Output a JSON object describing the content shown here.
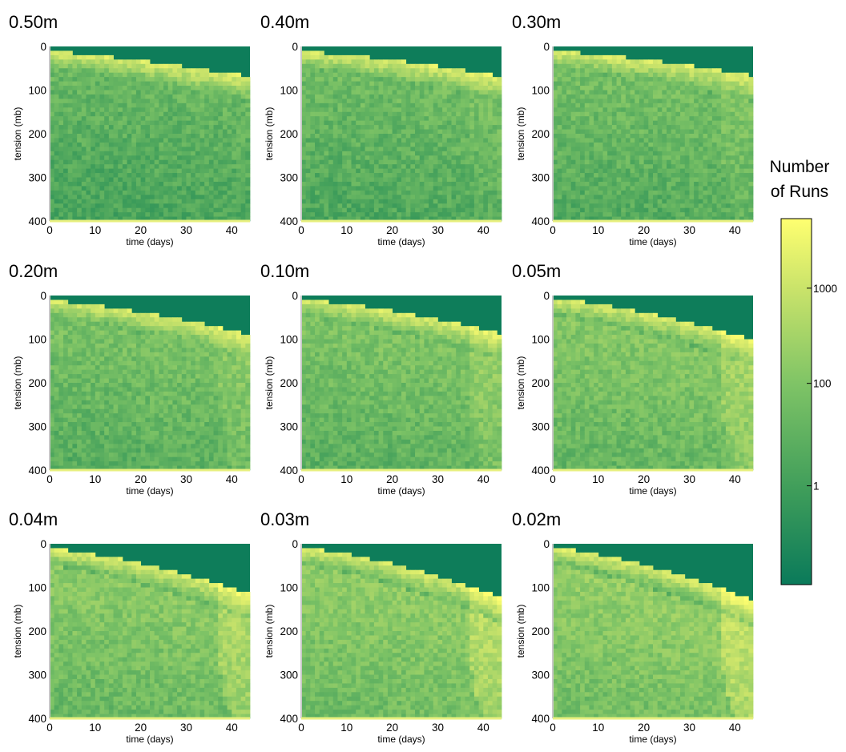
{
  "chart_data": {
    "type": "heatmap",
    "xlabel": "time (days)",
    "ylabel": "tension (mb)",
    "xlim": [
      0,
      44
    ],
    "ylim": [
      0,
      400
    ],
    "y_inverted": true,
    "xticks": [
      "0",
      "10",
      "20",
      "30",
      "40"
    ],
    "yticks": [
      "0",
      "100",
      "200",
      "300",
      "400"
    ],
    "colormap": [
      "#0a7a5a",
      "#3d9c5a",
      "#7fc466",
      "#c7e26a",
      "#ffff70"
    ],
    "panels": [
      {
        "title": "0.50m",
        "front_depth": 0.0,
        "dry_band": [
          12,
          70
        ]
      },
      {
        "title": "0.40m",
        "front_depth": 0.15,
        "dry_band": [
          12,
          65
        ]
      },
      {
        "title": "0.30m",
        "front_depth": 0.25,
        "dry_band": [
          12,
          60
        ]
      },
      {
        "title": "0.20m",
        "front_depth": 0.35,
        "dry_band": [
          12,
          80
        ]
      },
      {
        "title": "0.10m",
        "front_depth": 0.45,
        "dry_band": [
          10,
          75
        ]
      },
      {
        "title": "0.05m",
        "front_depth": 0.6,
        "dry_band": [
          8,
          85
        ]
      },
      {
        "title": "0.04m",
        "front_depth": 0.7,
        "dry_band": [
          12,
          95
        ]
      },
      {
        "title": "0.03m",
        "front_depth": 0.8,
        "dry_band": [
          10,
          100
        ]
      },
      {
        "title": "0.02m",
        "front_depth": 0.9,
        "dry_band": [
          10,
          105
        ]
      }
    ],
    "colorbar": {
      "title_line1": "Number",
      "title_line2": "of Runs",
      "scale": "log",
      "ticks": [
        "1000",
        "100",
        "1"
      ]
    }
  }
}
